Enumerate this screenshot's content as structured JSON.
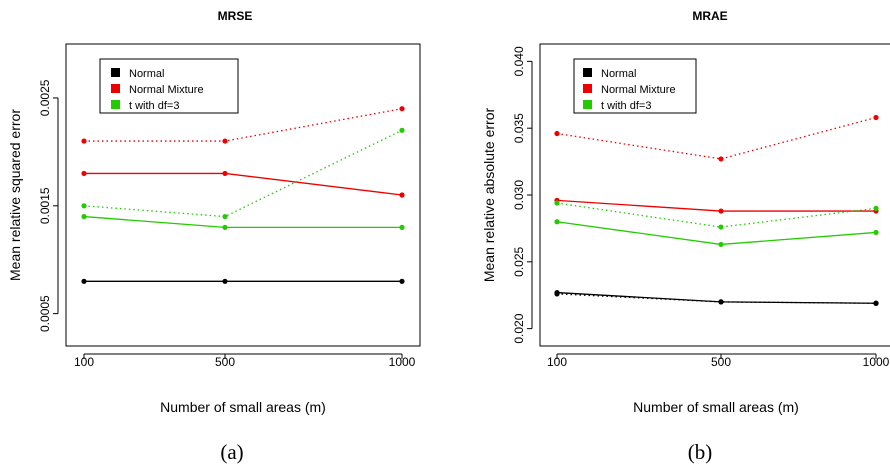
{
  "colors": {
    "Normal": "#000000",
    "Normal Mixture": "#ee0000",
    "t with df=3": "#22cc00"
  },
  "chart_data": [
    {
      "type": "line",
      "title": "MRSE",
      "xlabel": "Number of small areas (m)",
      "ylabel": "Mean relative squared error",
      "caption": "(a)",
      "x": [
        "100",
        "500",
        "1000"
      ],
      "ylim": [
        0.0002,
        0.003
      ],
      "yticks": [
        "0.0005",
        "0.0015",
        "0.0025"
      ],
      "yticks_values": [
        0.0005,
        0.0015,
        0.0025
      ],
      "legend": {
        "position": "top-left",
        "entries": [
          "Normal",
          "Normal Mixture",
          "t with df=3"
        ]
      },
      "series": [
        {
          "name": "Normal",
          "style": "solid",
          "values": [
            0.0008,
            0.0008,
            0.0008
          ]
        },
        {
          "name": "Normal Mixture",
          "style": "solid",
          "values": [
            0.0018,
            0.0018,
            0.0016
          ]
        },
        {
          "name": "Normal Mixture",
          "style": "dotted",
          "values": [
            0.0021,
            0.0021,
            0.0024
          ]
        },
        {
          "name": "t with df=3",
          "style": "solid",
          "values": [
            0.0014,
            0.0013,
            0.0013
          ]
        },
        {
          "name": "t with df=3",
          "style": "dotted",
          "values": [
            0.0015,
            0.0014,
            0.0022
          ]
        }
      ]
    },
    {
      "type": "line",
      "title": "MRAE",
      "xlabel": "Number of small areas (m)",
      "ylabel": "Mean relative absolute error",
      "caption": "(b)",
      "x": [
        "100",
        "500",
        "1000"
      ],
      "ylim": [
        0.0187,
        0.0413
      ],
      "yticks": [
        "0.020",
        "0.025",
        "0.030",
        "0.035",
        "0.040"
      ],
      "yticks_values": [
        0.02,
        0.025,
        0.03,
        0.035,
        0.04
      ],
      "legend": {
        "position": "top-left",
        "entries": [
          "Normal",
          "Normal Mixture",
          "t with df=3"
        ]
      },
      "series": [
        {
          "name": "Normal",
          "style": "solid",
          "values": [
            0.0227,
            0.022,
            0.0219
          ]
        },
        {
          "name": "Normal",
          "style": "dotted",
          "values": [
            0.0226,
            0.022,
            0.0219
          ]
        },
        {
          "name": "Normal Mixture",
          "style": "solid",
          "values": [
            0.0296,
            0.0288,
            0.0288
          ]
        },
        {
          "name": "Normal Mixture",
          "style": "dotted",
          "values": [
            0.0346,
            0.0327,
            0.0358
          ]
        },
        {
          "name": "t with df=3",
          "style": "solid",
          "values": [
            0.028,
            0.0263,
            0.0272
          ]
        },
        {
          "name": "t with df=3",
          "style": "dotted",
          "values": [
            0.0294,
            0.0276,
            0.029
          ]
        }
      ]
    }
  ]
}
